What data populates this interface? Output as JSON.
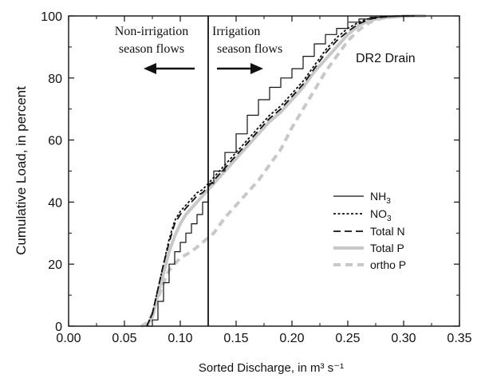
{
  "chart_data": {
    "type": "line",
    "title": "",
    "xlabel": "Sorted Discharge, in m³ s⁻¹",
    "ylabel": "Cumulative Load, in percent",
    "xlim": [
      0,
      0.35
    ],
    "ylim": [
      0,
      100
    ],
    "x_ticks": [
      "0.00",
      "0.05",
      "0.10",
      "0.15",
      "0.20",
      "0.25",
      "0.30",
      "0.35"
    ],
    "y_ticks": [
      "0",
      "20",
      "40",
      "60",
      "80",
      "100"
    ],
    "grid": false,
    "legend_position": "right-center",
    "annotations": {
      "panel_label": "DR2 Drain",
      "left_text_line1": "Non-irrigation",
      "left_text_line2": "season flows",
      "right_text_line1": "Irrigation",
      "right_text_line2": "season flows",
      "divider_x": 0.125
    },
    "series": [
      {
        "name": "NH3",
        "legend_main": "NH",
        "legend_sub": "3",
        "style": "solid-thin",
        "color": "#111111",
        "x": [
          0.07,
          0.075,
          0.08,
          0.085,
          0.09,
          0.095,
          0.1,
          0.105,
          0.11,
          0.115,
          0.12,
          0.125,
          0.13,
          0.14,
          0.15,
          0.16,
          0.17,
          0.18,
          0.19,
          0.2,
          0.21,
          0.22,
          0.23,
          0.24,
          0.25,
          0.26,
          0.27,
          0.28,
          0.29,
          0.3,
          0.31
        ],
        "y": [
          0,
          2,
          8,
          14,
          20,
          24,
          27,
          30,
          33,
          36,
          40,
          46,
          50,
          56,
          62,
          68,
          73,
          77,
          80,
          83,
          87,
          91,
          94,
          96,
          98,
          99,
          99.6,
          99.8,
          99.9,
          100,
          100
        ]
      },
      {
        "name": "NO3",
        "legend_main": "NO",
        "legend_sub": "3",
        "style": "dotted",
        "color": "#111111",
        "x": [
          0.07,
          0.075,
          0.08,
          0.085,
          0.09,
          0.095,
          0.1,
          0.105,
          0.11,
          0.115,
          0.12,
          0.125,
          0.13,
          0.14,
          0.15,
          0.16,
          0.17,
          0.18,
          0.19,
          0.2,
          0.21,
          0.22,
          0.23,
          0.24,
          0.25,
          0.26,
          0.27,
          0.28,
          0.29,
          0.3,
          0.31
        ],
        "y": [
          0,
          4,
          12,
          20,
          28,
          34,
          37,
          39,
          41,
          43,
          44,
          46,
          48,
          52,
          56,
          60,
          64,
          68,
          71,
          75,
          79,
          84,
          89,
          93,
          96,
          98,
          99.3,
          99.7,
          99.9,
          100,
          100
        ]
      },
      {
        "name": "Total N",
        "legend_main": "Total N",
        "legend_sub": "",
        "style": "dashed",
        "color": "#111111",
        "x": [
          0.07,
          0.075,
          0.08,
          0.085,
          0.09,
          0.095,
          0.1,
          0.105,
          0.11,
          0.115,
          0.12,
          0.125,
          0.13,
          0.14,
          0.15,
          0.16,
          0.17,
          0.18,
          0.19,
          0.2,
          0.21,
          0.22,
          0.23,
          0.24,
          0.25,
          0.26,
          0.27,
          0.28,
          0.29,
          0.3,
          0.31
        ],
        "y": [
          0,
          4,
          12,
          20,
          27,
          33,
          36,
          38,
          40,
          42,
          43,
          45,
          47,
          51,
          55,
          59,
          63,
          67,
          70,
          74,
          78,
          83,
          88,
          92,
          95,
          97.5,
          99,
          99.6,
          99.9,
          100,
          100
        ]
      },
      {
        "name": "Total P",
        "legend_main": "Total P",
        "legend_sub": "",
        "style": "solid-thick-gray",
        "color": "#c8c8c8",
        "x": [
          0.07,
          0.075,
          0.08,
          0.085,
          0.09,
          0.095,
          0.1,
          0.105,
          0.11,
          0.115,
          0.12,
          0.125,
          0.13,
          0.14,
          0.15,
          0.16,
          0.17,
          0.18,
          0.19,
          0.2,
          0.21,
          0.22,
          0.23,
          0.24,
          0.25,
          0.26,
          0.27,
          0.28,
          0.29,
          0.3,
          0.31,
          0.32
        ],
        "y": [
          0,
          3,
          10,
          17,
          24,
          29,
          33,
          36,
          38,
          40,
          42,
          44,
          46,
          50,
          54,
          58,
          62,
          66,
          69,
          73,
          77,
          82,
          86,
          90,
          94,
          97,
          98.6,
          99.3,
          99.7,
          99.9,
          100,
          100
        ]
      },
      {
        "name": "ortho P",
        "legend_main": "ortho P",
        "legend_sub": "",
        "style": "dashed-thick-gray",
        "color": "#c8c8c8",
        "x": [
          0.065,
          0.07,
          0.075,
          0.08,
          0.085,
          0.09,
          0.095,
          0.1,
          0.105,
          0.11,
          0.12,
          0.13,
          0.14,
          0.15,
          0.16,
          0.17,
          0.18,
          0.19,
          0.2,
          0.21,
          0.22,
          0.23,
          0.24,
          0.25,
          0.26,
          0.27,
          0.28,
          0.29,
          0.3,
          0.31,
          0.32
        ],
        "y": [
          0,
          1,
          4,
          9,
          14,
          18,
          20,
          22,
          23,
          24,
          27,
          30,
          35,
          39,
          43,
          47,
          52,
          57,
          64,
          70,
          76,
          82,
          87,
          92,
          95.5,
          98,
          99.2,
          99.7,
          99.9,
          100,
          100
        ]
      }
    ]
  }
}
